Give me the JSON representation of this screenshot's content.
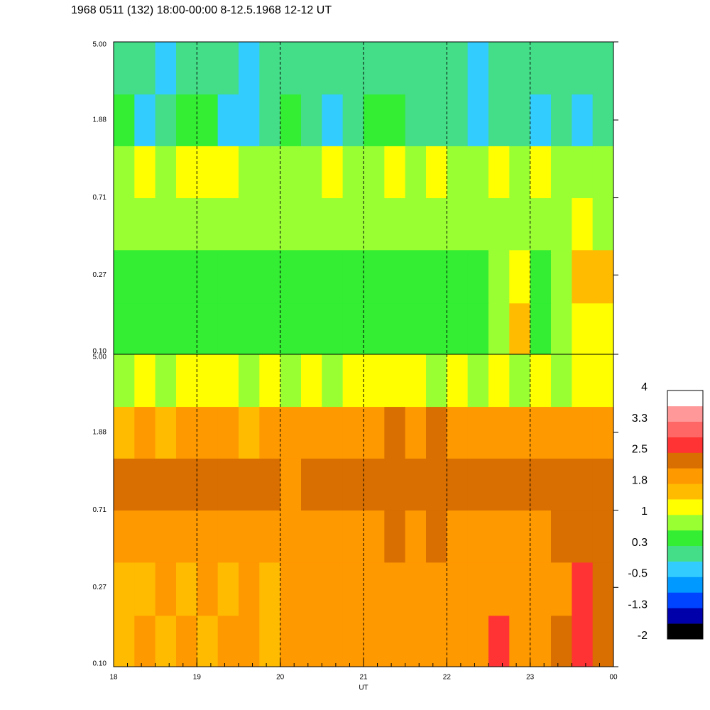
{
  "chart_data": {
    "type": "heatmap",
    "title": "1968 0511 (132) 18:00-00:00 8-12.5.1968  12-12 UT",
    "x_label": "UT",
    "xlim": [
      18,
      24
    ],
    "xticks": [
      18,
      19,
      20,
      21,
      22,
      23,
      {
        "value": 24,
        "label": "00"
      }
    ],
    "ylim": [
      0.1,
      5
    ],
    "log_y": true,
    "yticks": [
      {
        "value": 0.1,
        "label": "0.10"
      },
      {
        "value": 0.27,
        "label": "0.27"
      },
      {
        "value": 0.71,
        "label": "0.71"
      },
      {
        "value": 1.88,
        "label": "1.88"
      },
      {
        "value": 5,
        "label": "5.00"
      }
    ],
    "x_edges": [
      18,
      18.25,
      18.5,
      18.75,
      19,
      19.25,
      19.5,
      19.75,
      20,
      20.25,
      20.5,
      20.75,
      21,
      21.25,
      21.5,
      21.75,
      22,
      22.25,
      22.5,
      22.75,
      23,
      23.25,
      23.5,
      23.75,
      24
    ],
    "y_edges": [
      0.1,
      0.19,
      0.37,
      0.71,
      1.36,
      2.6,
      5
    ],
    "panels": [
      {
        "z": [
          [
            0.4,
            0.5,
            0.4,
            0.5,
            0.4,
            0.5,
            0.5,
            0.4,
            0.5,
            0.4,
            0.5,
            0.5,
            0.4,
            0.5,
            0.4,
            0.4,
            0.5,
            0.5,
            0.9,
            1.5,
            0.6,
            0.7,
            1.2,
            1.1
          ],
          [
            0.5,
            0.6,
            0.5,
            0.6,
            0.5,
            0.5,
            0.6,
            0.5,
            0.6,
            0.5,
            0.6,
            0.5,
            0.5,
            0.6,
            0.5,
            0.6,
            0.6,
            0.5,
            0.8,
            1.3,
            0.6,
            0.9,
            1.6,
            1.4
          ],
          [
            0.7,
            0.8,
            0.7,
            0.8,
            0.9,
            0.8,
            0.7,
            0.7,
            0.8,
            0.7,
            0.8,
            0.7,
            0.7,
            0.8,
            0.8,
            0.9,
            0.7,
            0.8,
            0.8,
            0.9,
            0.7,
            0.8,
            1.1,
            0.9
          ],
          [
            0.9,
            1.0,
            0.8,
            1.0,
            1.1,
            1.0,
            0.8,
            0.9,
            0.8,
            0.9,
            1.0,
            0.9,
            0.8,
            1.0,
            0.9,
            1.0,
            0.8,
            0.9,
            1.0,
            0.9,
            1.0,
            0.9,
            0.8,
            0.9
          ],
          [
            0.3,
            -0.3,
            0.0,
            0.4,
            0.3,
            -0.2,
            -0.4,
            0.2,
            0.3,
            0.1,
            -0.3,
            0.2,
            0.4,
            0.3,
            0.1,
            0.2,
            0.0,
            -0.2,
            0.1,
            0.0,
            -0.2,
            0.1,
            -0.4,
            -0.1
          ],
          [
            0.2,
            0.0,
            -0.2,
            0.1,
            0.2,
            0.0,
            -0.2,
            0.0,
            0.1,
            0.0,
            -0.1,
            0.1,
            0.2,
            0.1,
            0.0,
            0.1,
            0.0,
            -0.2,
            0.0,
            0.1,
            -0.1,
            0.0,
            -0.1,
            0.0
          ]
        ]
      },
      {
        "z": [
          [
            1.7,
            1.8,
            1.7,
            1.8,
            1.7,
            1.8,
            1.9,
            1.7,
            1.8,
            1.9,
            1.8,
            1.9,
            1.8,
            1.9,
            2.0,
            2.1,
            1.8,
            1.9,
            2.6,
            1.9,
            2.0,
            2.2,
            2.6,
            2.4
          ],
          [
            1.6,
            1.7,
            1.8,
            1.7,
            1.8,
            1.7,
            1.8,
            1.7,
            1.8,
            1.8,
            1.9,
            1.8,
            1.8,
            1.9,
            1.9,
            2.0,
            1.9,
            1.8,
            1.9,
            2.0,
            1.9,
            2.1,
            2.6,
            2.3
          ],
          [
            1.8,
            1.9,
            1.8,
            2.0,
            1.9,
            1.8,
            2.0,
            1.9,
            1.8,
            2.0,
            1.9,
            1.9,
            2.0,
            2.2,
            2.1,
            2.3,
            2.0,
            1.9,
            2.0,
            1.9,
            2.0,
            2.2,
            2.3,
            2.2
          ],
          [
            2.3,
            2.2,
            2.3,
            2.2,
            2.3,
            2.2,
            2.3,
            2.2,
            2.1,
            2.3,
            2.2,
            2.3,
            2.2,
            2.3,
            2.4,
            2.3,
            2.2,
            2.3,
            2.2,
            2.3,
            2.2,
            2.3,
            2.3,
            2.3
          ],
          [
            1.7,
            1.8,
            1.7,
            1.8,
            1.8,
            1.8,
            1.7,
            1.8,
            1.9,
            1.8,
            1.9,
            1.8,
            1.9,
            2.2,
            2.1,
            2.2,
            1.9,
            1.8,
            1.8,
            1.9,
            1.8,
            1.9,
            1.8,
            1.8
          ],
          [
            0.9,
            1.0,
            0.9,
            1.0,
            1.1,
            1.0,
            0.9,
            1.0,
            0.9,
            1.0,
            0.9,
            1.0,
            1.0,
            1.1,
            1.0,
            0.9,
            1.0,
            0.9,
            1.0,
            0.9,
            1.0,
            0.9,
            1.0,
            1.0
          ]
        ]
      }
    ],
    "colors": [
      "#000000",
      "#0000aa",
      "#0044ff",
      "#0099ff",
      "#33ccff",
      "#44dd88",
      "#33ee33",
      "#99ff33",
      "#ffff00",
      "#ffbb00",
      "#ff9900",
      "#d96f00",
      "#ff3333",
      "#ff6666",
      "#ff9999",
      "#ffffff"
    ],
    "clim": [
      -2.0,
      4.0
    ],
    "colorbar_ticks": [
      -2.0,
      {
        "value": -1.25,
        "label": "-1.3"
      },
      -0.5,
      {
        "value": 0.25,
        "label": "0.3"
      },
      1.0,
      {
        "value": 1.75,
        "label": "1.8"
      },
      2.5,
      {
        "value": 3.25,
        "label": "3.3"
      },
      4.0
    ]
  }
}
